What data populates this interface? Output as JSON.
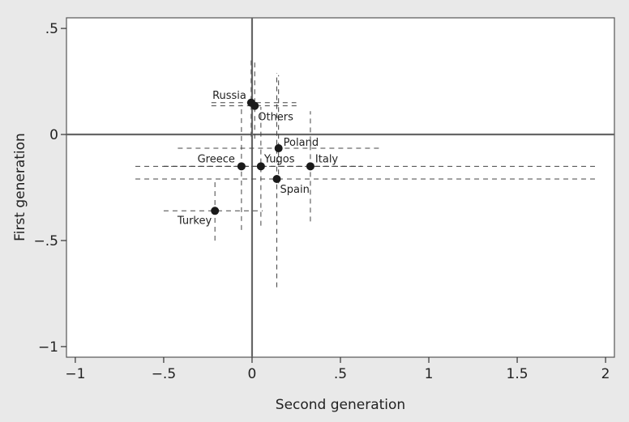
{
  "chart_data": {
    "type": "scatter",
    "title": "",
    "xlabel": "Second generation",
    "ylabel": "First generation",
    "xlim": [
      -1.05,
      2.05
    ],
    "ylim": [
      -1.05,
      0.55
    ],
    "xticks": [
      -1,
      -0.5,
      0,
      0.5,
      1,
      1.5,
      2
    ],
    "xtick_labels": [
      "−1",
      "−.5",
      "0",
      ".5",
      "1",
      "1.5",
      "2"
    ],
    "yticks": [
      0.5,
      0,
      -0.5,
      -1
    ],
    "ytick_labels": [
      ".5",
      "0",
      "−.5",
      "−1"
    ],
    "reference_lines": {
      "x": 0,
      "y": 0
    },
    "grid": false,
    "error_bars": "dashed",
    "points": [
      {
        "label": "Russia",
        "x": -0.005,
        "y": 0.15,
        "x_lo": -0.23,
        "x_hi": 0.25,
        "y_lo": -0.01,
        "y_hi": 0.35
      },
      {
        "label": "Others",
        "x": 0.015,
        "y": 0.135,
        "x_lo": -0.23,
        "x_hi": 0.26,
        "y_lo": -0.02,
        "y_hi": 0.35
      },
      {
        "label": "Poland",
        "x": 0.15,
        "y": -0.065,
        "x_lo": -0.42,
        "x_hi": 0.73,
        "y_lo": -0.23,
        "y_hi": 0.28
      },
      {
        "label": "Italy",
        "x": 0.33,
        "y": -0.15,
        "x_lo": -0.66,
        "x_hi": 1.94,
        "y_lo": -0.41,
        "y_hi": 0.11
      },
      {
        "label": "Greece",
        "x": -0.06,
        "y": -0.15,
        "x_lo": -0.5,
        "x_hi": 0.62,
        "y_lo": -0.45,
        "y_hi": 0.14
      },
      {
        "label": "Yugos",
        "x": 0.05,
        "y": -0.15,
        "x_lo": -0.5,
        "x_hi": 0.62,
        "y_lo": -0.43,
        "y_hi": 0.13
      },
      {
        "label": "Spain",
        "x": 0.14,
        "y": -0.21,
        "x_lo": -0.66,
        "x_hi": 1.94,
        "y_lo": -0.72,
        "y_hi": 0.29
      },
      {
        "label": "Turkey",
        "x": -0.21,
        "y": -0.36,
        "x_lo": -0.5,
        "x_hi": 0.06,
        "y_lo": -0.5,
        "y_hi": -0.21
      }
    ]
  }
}
